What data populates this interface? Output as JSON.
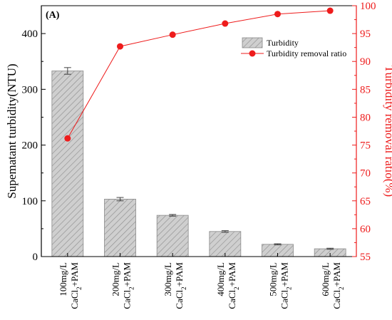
{
  "chart_data": {
    "type": "bar",
    "panel_label": "(A)",
    "categories": [
      {
        "line1": "100mg/L",
        "line2_main": "CaCl",
        "line2_sub": "2",
        "line2_rest": "+PAM"
      },
      {
        "line1": "200mg/L",
        "line2_main": "CaCl",
        "line2_sub": "2",
        "line2_rest": "+PAM"
      },
      {
        "line1": "300mg/L",
        "line2_main": "CaCl",
        "line2_sub": "2",
        "line2_rest": "+PAM"
      },
      {
        "line1": "400mg/L",
        "line2_main": "CaCl",
        "line2_sub": "2",
        "line2_rest": "+PAM"
      },
      {
        "line1": "500mg/L",
        "line2_main": "CaCl",
        "line2_sub": "2",
        "line2_rest": "+PAM"
      },
      {
        "line1": "600mg/L",
        "line2_main": "CaCl",
        "line2_sub": "2",
        "line2_rest": "+PAM"
      }
    ],
    "series": [
      {
        "name": "Turbidity",
        "type": "bar",
        "axis": "left",
        "values": [
          333,
          103,
          74,
          45,
          22,
          14
        ],
        "errors": [
          6,
          3,
          1.5,
          1.5,
          1,
          1
        ],
        "color": "#b8b8b8"
      },
      {
        "name": "Turbidity removal ratio",
        "type": "line",
        "axis": "right",
        "values": [
          76.2,
          92.7,
          94.8,
          96.8,
          98.5,
          99.1
        ],
        "color": "#ee1c1c"
      }
    ],
    "y_left": {
      "label": "Supematant turbidity(NTU)",
      "lim": [
        0,
        450
      ],
      "ticks": [
        0,
        100,
        200,
        300,
        400
      ],
      "tick_labels": [
        "0",
        "100",
        "200",
        "300",
        "400"
      ]
    },
    "y_right": {
      "label": "Turbidity removal ratio(%)",
      "lim": [
        55,
        100
      ],
      "ticks": [
        55,
        60,
        65,
        70,
        75,
        80,
        85,
        90,
        95,
        100
      ],
      "tick_labels": [
        "55",
        "60",
        "65",
        "70",
        "75",
        "80",
        "85",
        "90",
        "95",
        "100"
      ]
    },
    "legend_position": "top-right",
    "grid": false
  }
}
